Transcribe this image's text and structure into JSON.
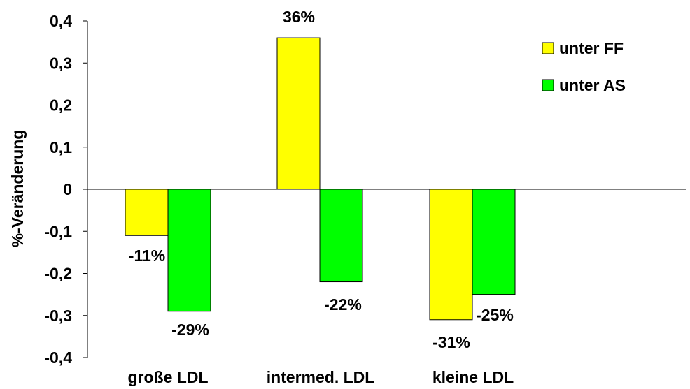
{
  "chart_data": {
    "type": "bar",
    "title": "",
    "xlabel": "",
    "ylabel": "%-Veränderung",
    "ylim": [
      -0.4,
      0.4
    ],
    "yticks": [
      0.4,
      0.3,
      0.2,
      0.1,
      0,
      -0.1,
      -0.2,
      -0.3,
      -0.4
    ],
    "ytick_labels": [
      "0,4",
      "0,3",
      "0,2",
      "0,1",
      "0",
      "-0,1",
      "-0,2",
      "-0,3",
      "-0,4"
    ],
    "categories": [
      "große LDL",
      "intermed. LDL",
      "kleine LDL"
    ],
    "series": [
      {
        "name": "unter FF",
        "color": "#ffff00",
        "values": [
          -0.11,
          0.36,
          -0.31
        ],
        "labels": [
          "-11%",
          "36%",
          "-31%"
        ]
      },
      {
        "name": "unter AS",
        "color": "#00ff00",
        "values": [
          -0.29,
          -0.22,
          -0.25
        ],
        "labels": [
          "-29%",
          "-22%",
          "-25%"
        ]
      }
    ],
    "grid": false,
    "legend_position": "top-right"
  }
}
